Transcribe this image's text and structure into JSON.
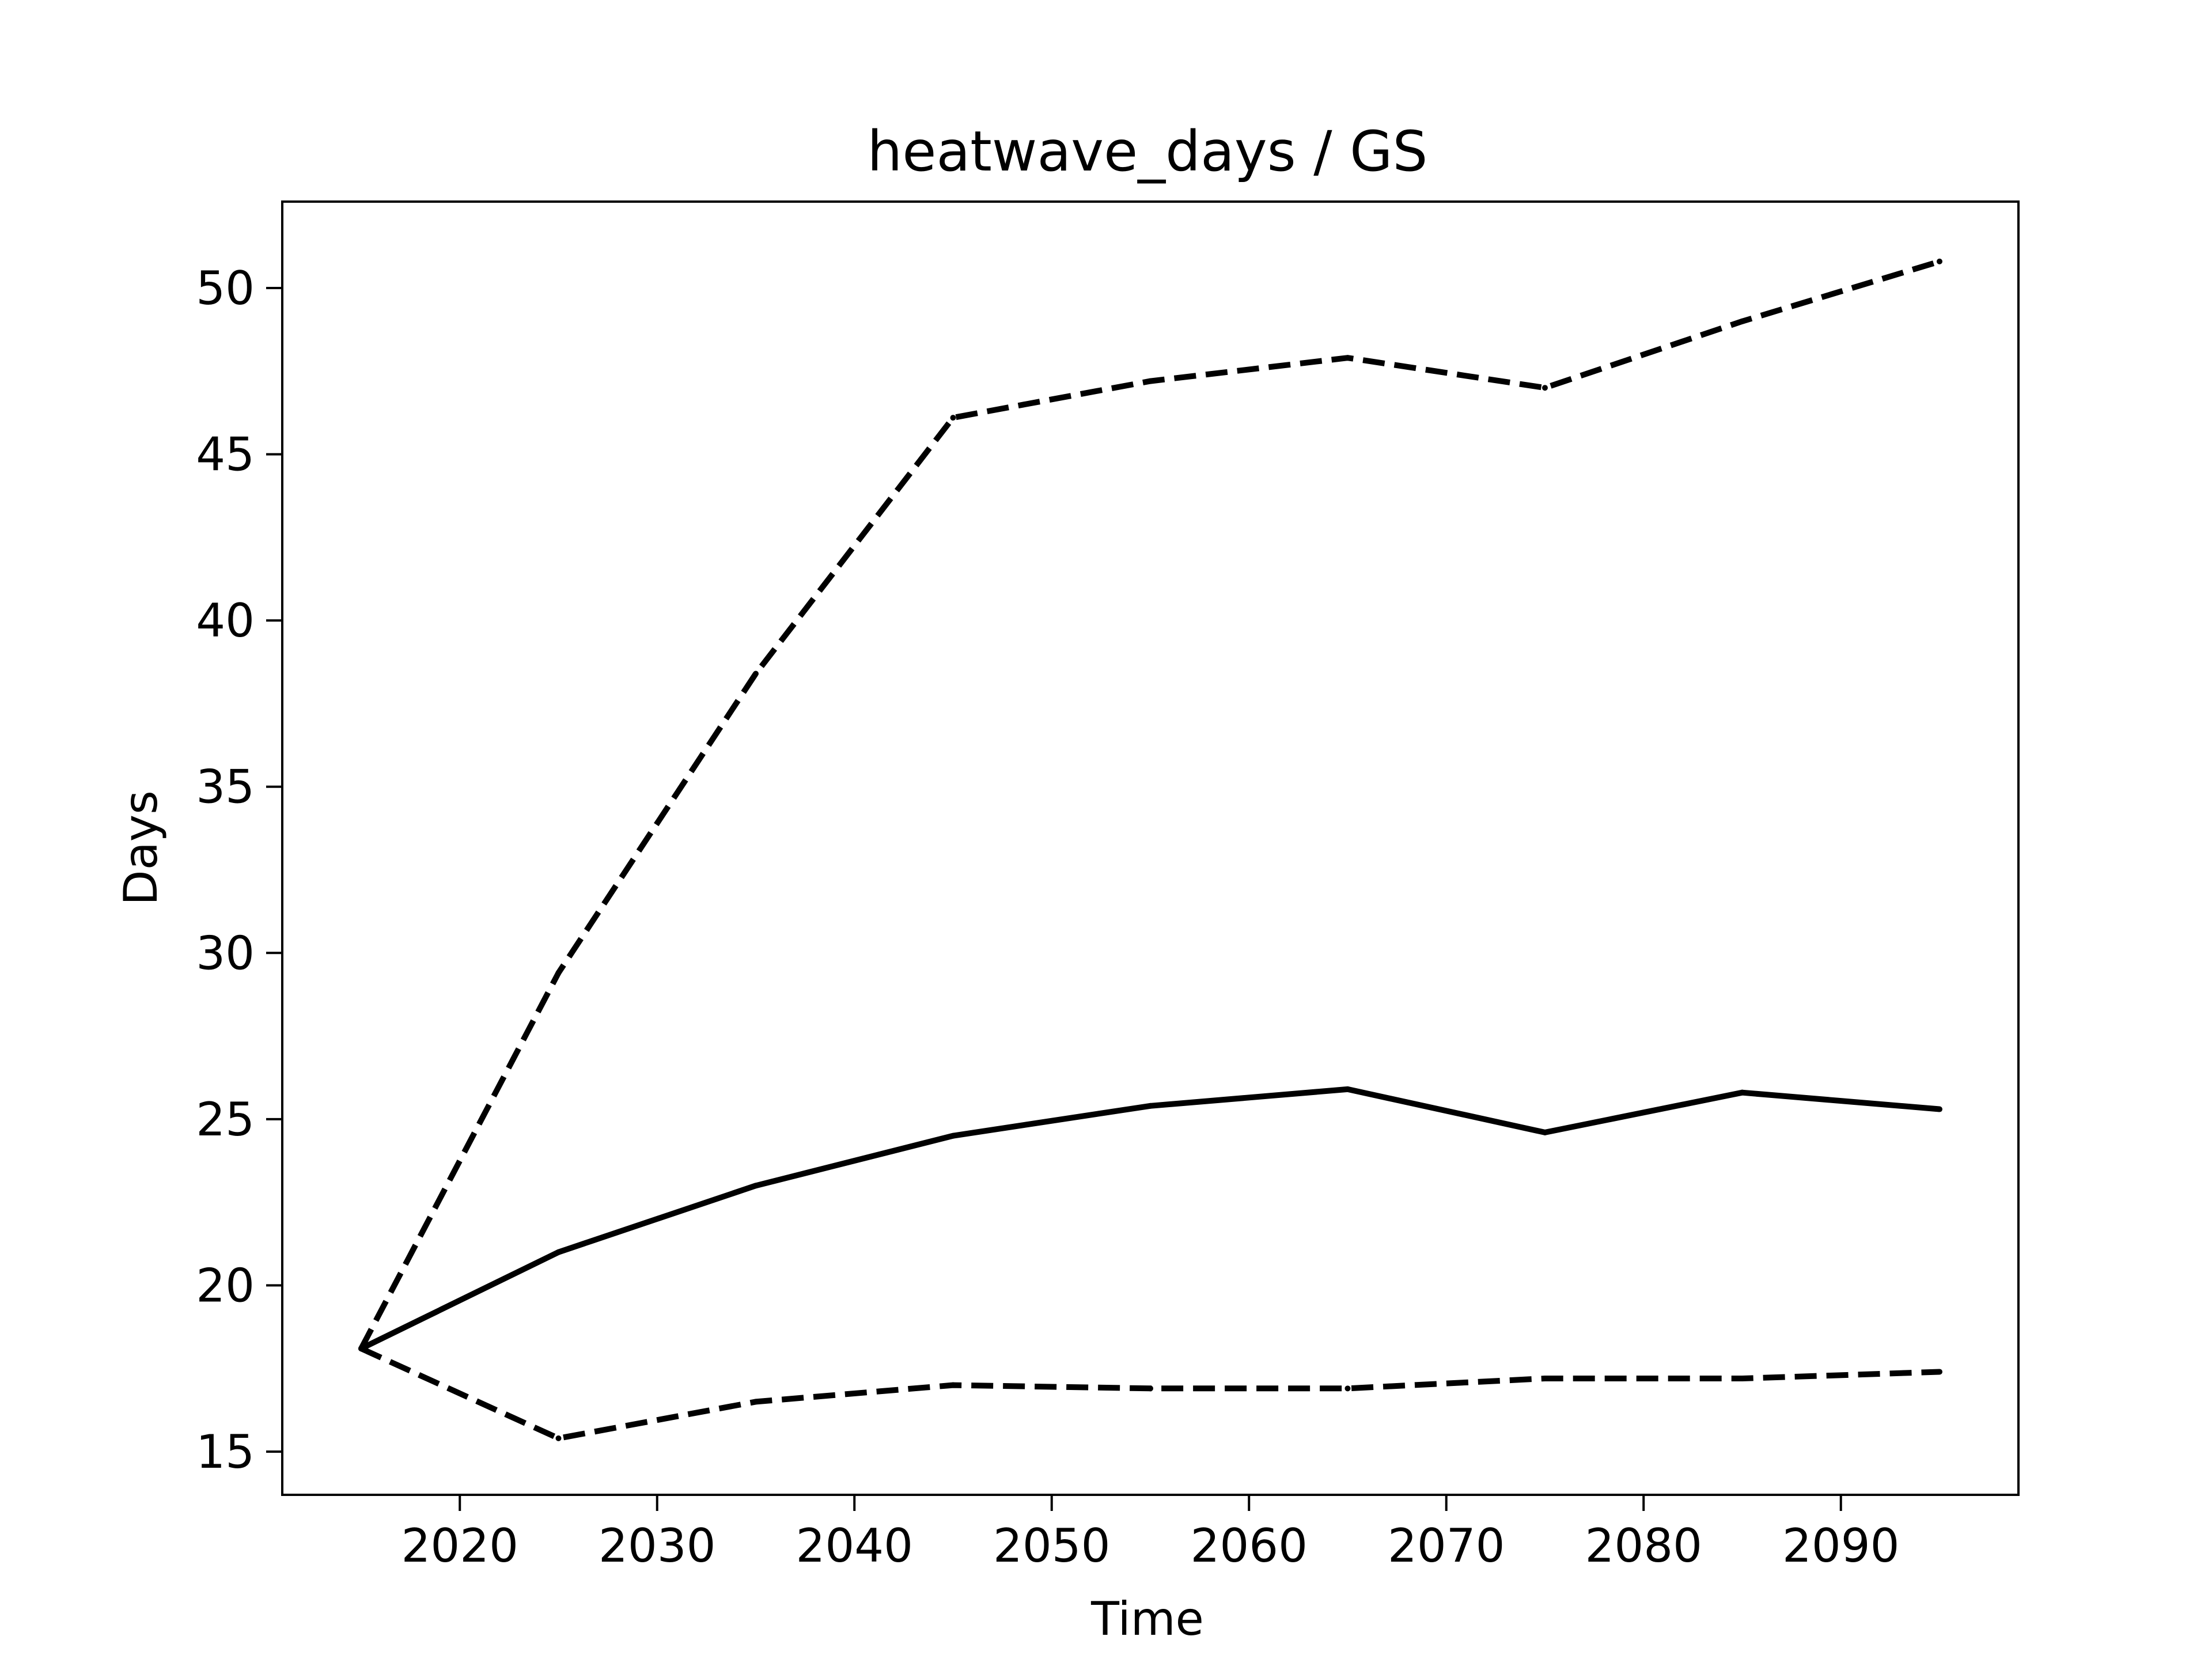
{
  "chart_data": {
    "type": "line",
    "title": "heatwave_days / GS",
    "xlabel": "Time",
    "ylabel": "Days",
    "xlim": [
      2011,
      2099
    ],
    "ylim": [
      13.7,
      52.6
    ],
    "x_ticks": [
      2020,
      2030,
      2040,
      2050,
      2060,
      2070,
      2080,
      2090
    ],
    "y_ticks": [
      15,
      20,
      25,
      30,
      35,
      40,
      45,
      50
    ],
    "grid": false,
    "x": [
      2015,
      2025,
      2035,
      2045,
      2055,
      2065,
      2075,
      2085,
      2095
    ],
    "series": [
      {
        "style": "solid",
        "color": "#000000",
        "values": [
          18.1,
          21.0,
          23.0,
          24.5,
          25.4,
          25.9,
          24.6,
          25.8,
          25.3
        ]
      },
      {
        "style": "dashed",
        "color": "#000000",
        "values": [
          18.1,
          29.4,
          38.4,
          46.1,
          47.2,
          47.9,
          47.0,
          49.0,
          50.8
        ]
      },
      {
        "style": "dashed",
        "color": "#000000",
        "values": [
          18.1,
          15.4,
          16.5,
          17.0,
          16.9,
          16.9,
          17.2,
          17.2,
          17.4
        ]
      }
    ]
  }
}
